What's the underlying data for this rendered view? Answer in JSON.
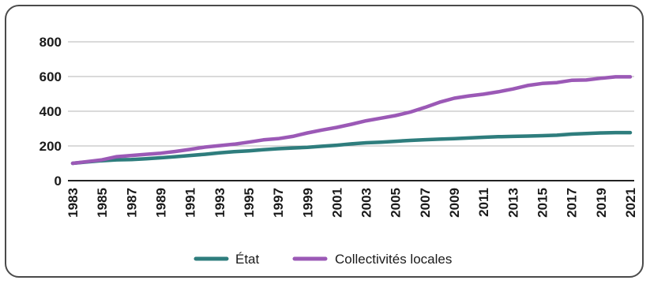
{
  "chart_data": {
    "type": "line",
    "title": "",
    "xlabel": "",
    "ylabel": "",
    "ylim": [
      0,
      800
    ],
    "yticks": [
      "0",
      "200",
      "400",
      "600",
      "800"
    ],
    "xticks": [
      "1983",
      "1985",
      "1987",
      "1989",
      "1991",
      "1993",
      "1995",
      "1997",
      "1999",
      "2001",
      "2003",
      "2005",
      "2007",
      "2009",
      "2011",
      "2013",
      "2015",
      "2017",
      "2019",
      "2021"
    ],
    "grid": "horizontal",
    "legend_position": "bottom",
    "x": [
      1983,
      1984,
      1985,
      1986,
      1987,
      1988,
      1989,
      1990,
      1991,
      1992,
      1993,
      1994,
      1995,
      1996,
      1997,
      1998,
      1999,
      2000,
      2001,
      2002,
      2003,
      2004,
      2005,
      2006,
      2007,
      2008,
      2009,
      2010,
      2011,
      2012,
      2013,
      2014,
      2015,
      2016,
      2017,
      2018,
      2019,
      2020,
      2021
    ],
    "series": [
      {
        "name": "État",
        "color": "#2e7d7d",
        "values": [
          100,
          108,
          115,
          120,
          122,
          126,
          132,
          138,
          145,
          152,
          160,
          167,
          172,
          178,
          184,
          188,
          192,
          198,
          204,
          212,
          218,
          222,
          227,
          232,
          236,
          239,
          242,
          246,
          250,
          253,
          255,
          257,
          259,
          262,
          268,
          272,
          275,
          277,
          277
        ]
      },
      {
        "name": "Collectivités locales",
        "color": "#9b59b6",
        "values": [
          100,
          110,
          120,
          138,
          145,
          152,
          158,
          168,
          180,
          193,
          202,
          210,
          222,
          235,
          242,
          255,
          275,
          292,
          307,
          325,
          345,
          360,
          375,
          395,
          422,
          452,
          475,
          488,
          498,
          512,
          528,
          548,
          560,
          565,
          578,
          580,
          590,
          598,
          598
        ]
      }
    ]
  }
}
